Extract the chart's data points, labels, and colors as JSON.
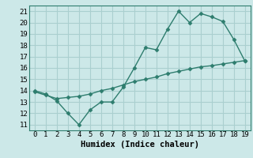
{
  "xlabel": "Humidex (Indice chaleur)",
  "ylabel": "",
  "bg_color": "#cce8e8",
  "grid_color": "#aacfcf",
  "line_color": "#2e7d6e",
  "xlim": [
    -0.5,
    19.5
  ],
  "ylim": [
    10.5,
    21.5
  ],
  "xticks": [
    0,
    1,
    2,
    3,
    4,
    5,
    6,
    7,
    8,
    9,
    10,
    11,
    12,
    13,
    14,
    15,
    16,
    17,
    18,
    19
  ],
  "yticks": [
    11,
    12,
    13,
    14,
    15,
    16,
    17,
    18,
    19,
    20,
    21
  ],
  "curve1_x": [
    0,
    1,
    2,
    3,
    4,
    5,
    6,
    7,
    8,
    9,
    10,
    11,
    12,
    13,
    14,
    15,
    16,
    17,
    18,
    19
  ],
  "curve1_y": [
    14.0,
    13.7,
    13.1,
    12.0,
    11.0,
    12.3,
    13.0,
    13.0,
    14.3,
    16.0,
    17.8,
    17.6,
    19.4,
    21.0,
    20.0,
    20.8,
    20.5,
    20.1,
    18.5,
    16.6
  ],
  "curve2_x": [
    0,
    1,
    2,
    3,
    4,
    5,
    6,
    7,
    8,
    9,
    10,
    11,
    12,
    13,
    14,
    15,
    16,
    17,
    18,
    19
  ],
  "curve2_y": [
    13.9,
    13.6,
    13.3,
    13.4,
    13.5,
    13.7,
    14.0,
    14.2,
    14.5,
    14.8,
    15.0,
    15.2,
    15.5,
    15.7,
    15.9,
    16.1,
    16.2,
    16.35,
    16.5,
    16.65
  ],
  "marker": "D",
  "markersize": 2.5,
  "linewidth": 1.0,
  "xlabel_fontsize": 7.5,
  "tick_fontsize": 6.5
}
